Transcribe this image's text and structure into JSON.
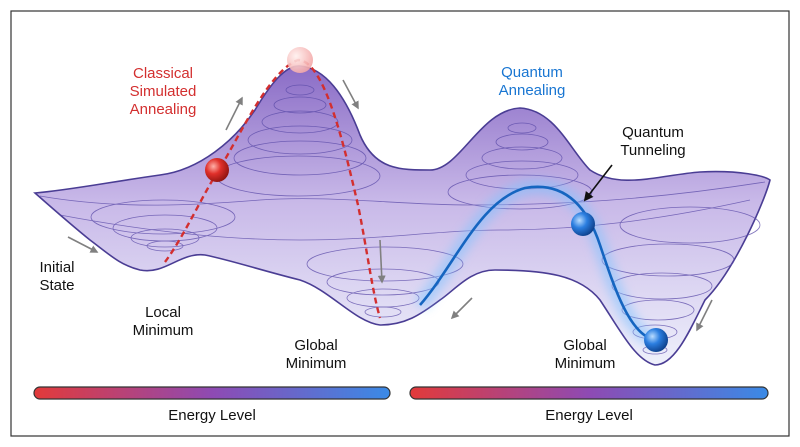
{
  "labels": {
    "classical_1": "Classical",
    "classical_2": "Simulated",
    "classical_3": "Annealing",
    "quantum_1": "Quantum",
    "quantum_2": "Annealing",
    "tunneling_1": "Quantum",
    "tunneling_2": "Tunneling",
    "initial_1": "Initial",
    "initial_2": "State",
    "local_1": "Local",
    "local_2": "Minimum",
    "global_left_1": "Global",
    "global_left_2": "Minimum",
    "global_right_1": "Global",
    "global_right_2": "Minimum"
  },
  "energy_bars": [
    {
      "label": "Energy Level"
    },
    {
      "label": "Energy Level"
    }
  ],
  "colors": {
    "classical": "#d32f2f",
    "quantum": "#1976d2",
    "surface_line": "#4a3d94",
    "energy_start": "#e23a3a",
    "energy_mid": "#8e4ab3",
    "energy_end": "#3a8ae6"
  }
}
